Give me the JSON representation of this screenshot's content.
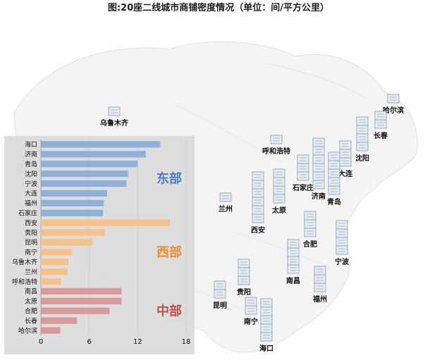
{
  "title": "图:20座二线城市商铺密度情况（单位：间/平方公里）",
  "colors": {
    "east": "#8fb0d9",
    "west": "#f9c08a",
    "central": "#d99a9a",
    "east_text": "#4f7dbf",
    "west_text": "#f28c28",
    "central_text": "#c0504d",
    "panel": "#d9d9d9"
  },
  "map": {
    "cities": [
      {
        "name": "乌鲁木齐",
        "stack": 1
      },
      {
        "name": "哈尔滨",
        "stack": 1
      },
      {
        "name": "长春",
        "stack": 2
      },
      {
        "name": "沈阳",
        "stack": 4
      },
      {
        "name": "呼和浩特",
        "stack": 1
      },
      {
        "name": "石家庄",
        "stack": 3
      },
      {
        "name": "大连",
        "stack": 3
      },
      {
        "name": "济南",
        "stack": 6
      },
      {
        "name": "青岛",
        "stack": 5
      },
      {
        "name": "兰州",
        "stack": 1
      },
      {
        "name": "太原",
        "stack": 4
      },
      {
        "name": "西安",
        "stack": 6
      },
      {
        "name": "合肥",
        "stack": 3
      },
      {
        "name": "宁波",
        "stack": 4
      },
      {
        "name": "南昌",
        "stack": 4
      },
      {
        "name": "福州",
        "stack": 3
      },
      {
        "name": "昆明",
        "stack": 2
      },
      {
        "name": "贵阳",
        "stack": 3
      },
      {
        "name": "南宁",
        "stack": 2
      },
      {
        "name": "海口",
        "stack": 5
      }
    ]
  },
  "chart_data": {
    "type": "bar",
    "orientation": "horizontal",
    "title": "图:20座二线城市商铺密度情况（单位：间/平方公里）",
    "xlim": [
      0,
      18
    ],
    "xticks": [
      0,
      6,
      12,
      18
    ],
    "categories": [
      "海口",
      "济南",
      "青岛",
      "沈阳",
      "宁波",
      "大连",
      "福州",
      "石家庄",
      "西安",
      "贵阳",
      "昆明",
      "南宁",
      "乌鲁木齐",
      "兰州",
      "呼和浩特",
      "南昌",
      "太原",
      "合肥",
      "长春",
      "哈尔滨"
    ],
    "values": [
      14.8,
      13.0,
      12.0,
      10.8,
      10.6,
      8.2,
      7.8,
      7.7,
      16.0,
      7.9,
      6.4,
      3.8,
      3.4,
      3.3,
      2.5,
      10.0,
      10.0,
      8.5,
      4.5,
      2.4
    ],
    "groups": [
      {
        "name": "东部",
        "start": 0,
        "end": 7,
        "color": "#8fb0d9"
      },
      {
        "name": "西部",
        "start": 8,
        "end": 14,
        "color": "#f9c08a"
      },
      {
        "name": "中部",
        "start": 15,
        "end": 19,
        "color": "#d99a9a"
      }
    ]
  }
}
